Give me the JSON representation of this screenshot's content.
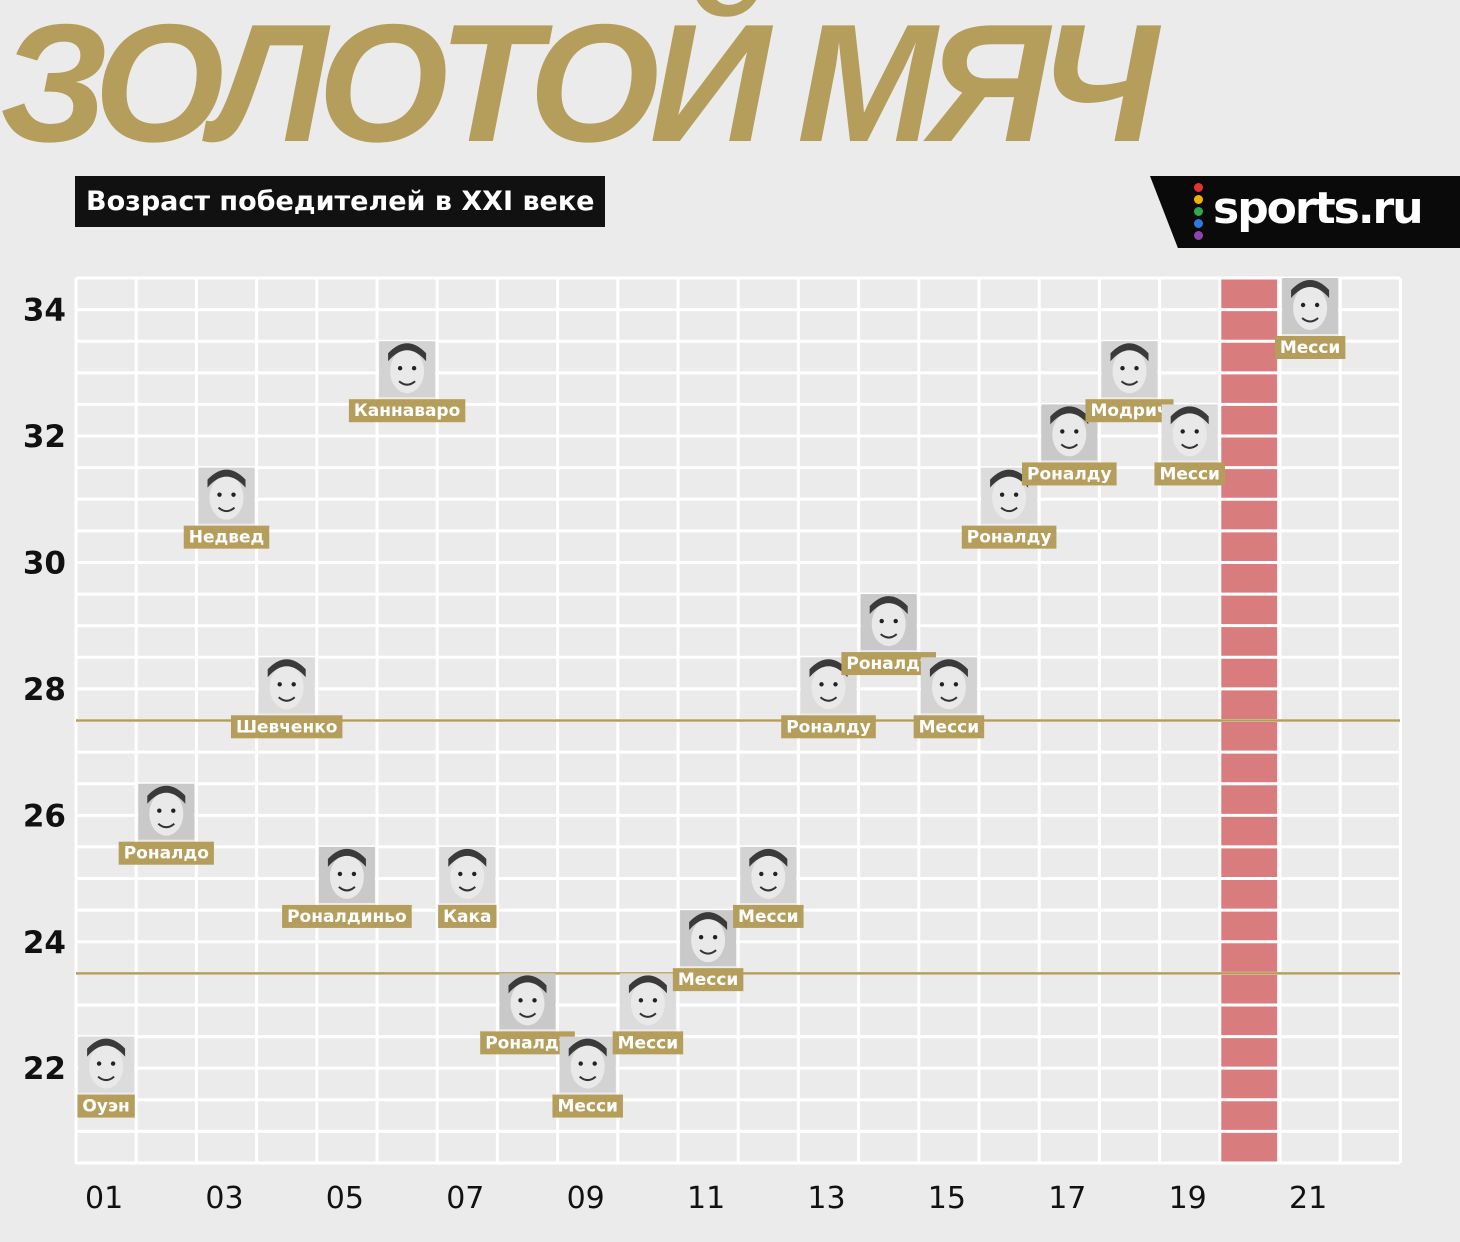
{
  "header": {
    "title": "ЗОЛОТОЙ МЯЧ",
    "subtitle": "Возраст победителей в XXI веке"
  },
  "logo": {
    "text": "sports.ru",
    "dot_colors": [
      "#e4322f",
      "#f3b100",
      "#2fa84f",
      "#2c7be5",
      "#8e44ad"
    ]
  },
  "colors": {
    "gold": "#b59d5c",
    "grid": "#ffffff",
    "background": "#ebebeb",
    "highlight_band": "#d97c7e",
    "label_text": "#ffffff"
  },
  "chart_data": {
    "type": "scatter",
    "x_tick_labels": [
      "01",
      "03",
      "05",
      "07",
      "09",
      "11",
      "13",
      "15",
      "17",
      "19",
      "21"
    ],
    "y_tick_labels": [
      "22",
      "24",
      "26",
      "28",
      "30",
      "32",
      "34"
    ],
    "ylim": [
      20.5,
      34.5
    ],
    "grid": true,
    "reference_lines": [
      27.5,
      23.5
    ],
    "highlight_year": 2020,
    "points": [
      {
        "year": 2001,
        "age": 22,
        "name": "Оуэн"
      },
      {
        "year": 2002,
        "age": 26,
        "name": "Роналдо"
      },
      {
        "year": 2003,
        "age": 31,
        "name": "Недвед"
      },
      {
        "year": 2004,
        "age": 28,
        "name": "Шевченко"
      },
      {
        "year": 2005,
        "age": 25,
        "name": "Роналдиньо"
      },
      {
        "year": 2006,
        "age": 33,
        "name": "Каннаваро"
      },
      {
        "year": 2007,
        "age": 25,
        "name": "Кака"
      },
      {
        "year": 2008,
        "age": 23,
        "name": "Роналду"
      },
      {
        "year": 2009,
        "age": 22,
        "name": "Месси"
      },
      {
        "year": 2010,
        "age": 23,
        "name": "Месси"
      },
      {
        "year": 2011,
        "age": 24,
        "name": "Месси"
      },
      {
        "year": 2012,
        "age": 25,
        "name": "Месси"
      },
      {
        "year": 2013,
        "age": 28,
        "name": "Роналду"
      },
      {
        "year": 2014,
        "age": 29,
        "name": "Роналду"
      },
      {
        "year": 2015,
        "age": 28,
        "name": "Месси"
      },
      {
        "year": 2016,
        "age": 31,
        "name": "Роналду"
      },
      {
        "year": 2017,
        "age": 32,
        "name": "Роналду"
      },
      {
        "year": 2018,
        "age": 33,
        "name": "Модрич"
      },
      {
        "year": 2019,
        "age": 32,
        "name": "Месси"
      },
      {
        "year": 2021,
        "age": 34,
        "name": "Месси"
      }
    ]
  }
}
